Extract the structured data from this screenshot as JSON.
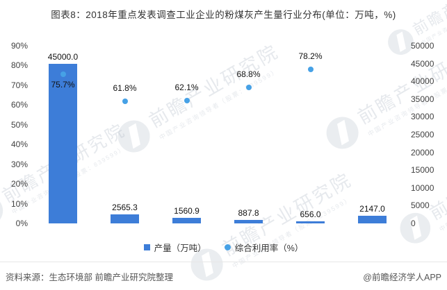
{
  "title": "图表8：2018年重点发表调查工业企业的粉煤灰产生量行业分布(单位：万吨，%)",
  "colors": {
    "bar": "#3d7dd8",
    "dot": "#46a1e6",
    "title_text": "#333333",
    "axis_text": "#404040",
    "data_label_text": "#111111",
    "footer_text": "#555555"
  },
  "left_axis": {
    "labels": [
      "90%",
      "80%",
      "70%",
      "60%",
      "50%",
      "40%",
      "30%",
      "20%",
      "10%",
      "0%"
    ],
    "min": 0,
    "max": 90
  },
  "right_axis": {
    "labels": [
      "50000",
      "45000",
      "40000",
      "35000",
      "30000",
      "25000",
      "20000",
      "15000",
      "10000",
      "5000",
      "0"
    ],
    "min": 0,
    "max": 50000
  },
  "chart_data": {
    "type": "bar",
    "categories": [
      "",
      "",
      "",
      "",
      "",
      ""
    ],
    "series": [
      {
        "name": "产量（万吨）",
        "type": "bar",
        "axis": "right",
        "values": [
          45000.0,
          2565.3,
          1560.9,
          887.8,
          656.0,
          2147.0
        ],
        "labels": [
          "45000.0",
          "2565.3",
          "1560.9",
          "887.8",
          "656.0",
          "2147.0"
        ]
      },
      {
        "name": "综合利用率（%）",
        "type": "scatter",
        "axis": "left",
        "values": [
          75.7,
          61.8,
          62.1,
          68.8,
          78.2,
          null
        ],
        "labels": [
          "75.7%",
          "61.8%",
          "62.1%",
          "68.8%",
          "78.2%",
          ""
        ],
        "label_position": [
          "below",
          "above",
          "above",
          "above",
          "above",
          null
        ]
      }
    ],
    "left_axis_range": [
      0,
      90
    ],
    "right_axis_range": [
      0,
      50000
    ],
    "grid": false,
    "axis_lines": false,
    "legend_position": "bottom"
  },
  "legend": {
    "items": [
      {
        "label": "产量（万吨）",
        "marker": "square"
      },
      {
        "label": "综合利用率（%）",
        "marker": "circle"
      }
    ]
  },
  "watermark": {
    "brand": "前瞻产业研究院",
    "sub": "中国产业咨询领导者（股票：839599）"
  },
  "footer": {
    "source": "资料来源：生态环境部 前瞻产业研究院整理",
    "credit": "@前瞻经济学人APP"
  }
}
